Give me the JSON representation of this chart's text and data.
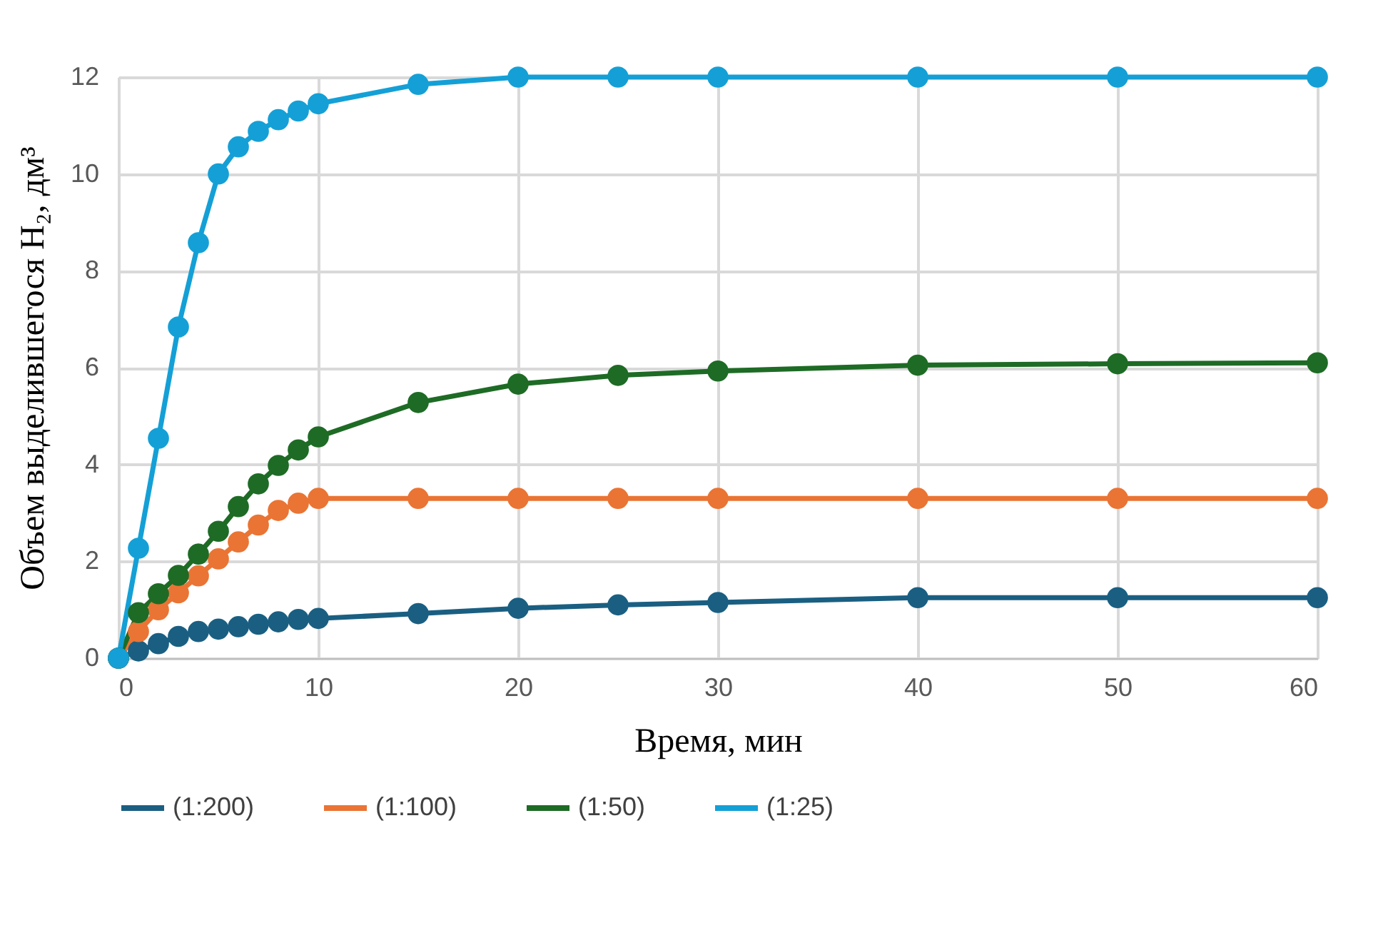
{
  "chart_data": {
    "type": "line",
    "xlabel": "Время, мин",
    "ylabel": "Объем выделившегося H₂, дм³",
    "x": [
      0,
      1,
      2,
      3,
      4,
      5,
      6,
      7,
      8,
      9,
      10,
      15,
      20,
      25,
      30,
      40,
      50,
      60
    ],
    "series": [
      {
        "name": "(1:200)",
        "color": "#1a5f82",
        "values": [
          0,
          0.15,
          0.3,
          0.45,
          0.55,
          0.6,
          0.65,
          0.7,
          0.75,
          0.8,
          0.82,
          0.92,
          1.03,
          1.1,
          1.15,
          1.25,
          1.25,
          1.25
        ]
      },
      {
        "name": "(1:100)",
        "color": "#ea7434",
        "values": [
          0,
          0.55,
          1.0,
          1.35,
          1.7,
          2.05,
          2.4,
          2.75,
          3.05,
          3.2,
          3.3,
          3.3,
          3.3,
          3.3,
          3.3,
          3.3,
          3.3,
          3.3
        ]
      },
      {
        "name": "(1:50)",
        "color": "#1e6b25",
        "values": [
          0,
          0.94,
          1.33,
          1.71,
          2.15,
          2.62,
          3.13,
          3.6,
          3.98,
          4.3,
          4.57,
          5.28,
          5.66,
          5.84,
          5.93,
          6.05,
          6.08,
          6.1
        ]
      },
      {
        "name": "(1:25)",
        "color": "#14a0d6",
        "values": [
          0,
          2.27,
          4.54,
          6.84,
          8.58,
          10.0,
          10.56,
          10.88,
          11.12,
          11.3,
          11.45,
          11.85,
          12.0,
          12.0,
          12.0,
          12.0,
          12.0,
          12.0
        ]
      }
    ],
    "xlim": [
      0,
      60
    ],
    "xticks": [
      0,
      10,
      20,
      30,
      40,
      50,
      60
    ],
    "ylim": [
      0,
      12
    ],
    "yticks": [
      0,
      2,
      4,
      6,
      8,
      10,
      12
    ],
    "grid": true,
    "legend": "bottom",
    "marker": "circle",
    "line_style": "solid"
  }
}
